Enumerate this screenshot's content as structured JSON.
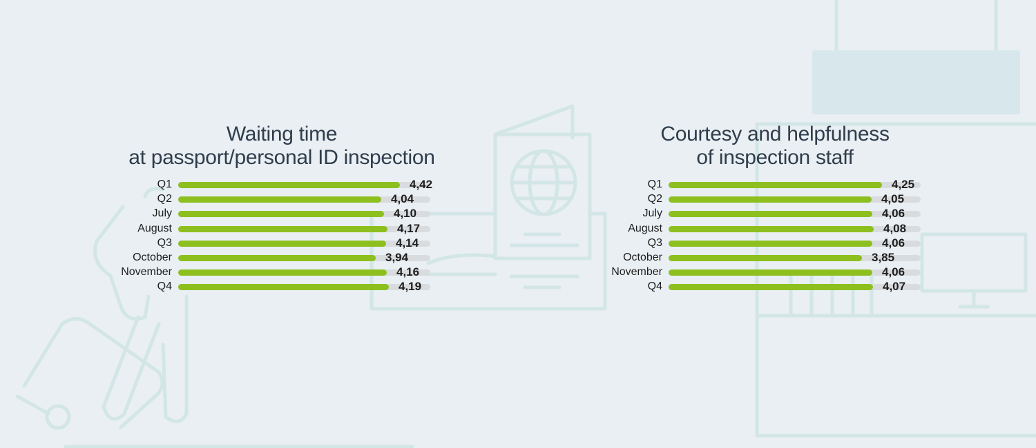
{
  "chart_data": [
    {
      "type": "bar",
      "orientation": "horizontal",
      "title_lines": [
        "Waiting time",
        "at passport/personal ID inspection"
      ],
      "categories": [
        "Q1",
        "Q2",
        "July",
        "August",
        "Q3",
        "October",
        "November",
        "Q4"
      ],
      "values": [
        4.42,
        4.04,
        4.1,
        4.17,
        4.14,
        3.94,
        4.16,
        4.19
      ],
      "value_labels": [
        "4,42",
        "4,04",
        "4,10",
        "4,17",
        "4,14",
        "3,94",
        "4,16",
        "4,19"
      ],
      "xlim": [
        0,
        5
      ]
    },
    {
      "type": "bar",
      "orientation": "horizontal",
      "title_lines": [
        "Courtesy and helpfulness",
        "of inspection staff"
      ],
      "categories": [
        "Q1",
        "Q2",
        "July",
        "August",
        "Q3",
        "October",
        "November",
        "Q4"
      ],
      "values": [
        4.25,
        4.05,
        4.06,
        4.08,
        4.06,
        3.85,
        4.06,
        4.07
      ],
      "value_labels": [
        "4,25",
        "4,05",
        "4,06",
        "4,08",
        "4,06",
        "3,85",
        "4,06",
        "4,07"
      ],
      "xlim": [
        0,
        5
      ]
    }
  ],
  "colors": {
    "bar": "#8dbf1f",
    "track": "#d9dcdf",
    "background": "#e9eff3",
    "illustration": "#d3e6e6"
  }
}
